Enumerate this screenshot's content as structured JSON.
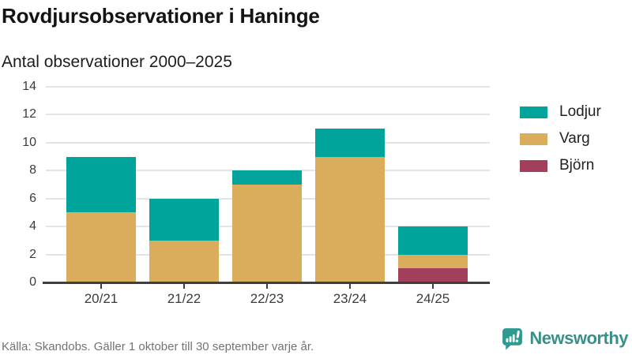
{
  "chart_data": {
    "type": "bar",
    "stacked": true,
    "title": "Rovdjursobservationer i Haninge",
    "subtitle": "Antal observationer 2000–2025",
    "categories": [
      "20/21",
      "21/22",
      "22/23",
      "23/24",
      "24/25"
    ],
    "series": [
      {
        "name": "Björn",
        "color": "#a23f5b",
        "values": [
          0,
          0,
          0,
          0,
          1
        ]
      },
      {
        "name": "Varg",
        "color": "#d9ad5c",
        "values": [
          5,
          3,
          7,
          9,
          1
        ]
      },
      {
        "name": "Lodjur",
        "color": "#00a49a",
        "values": [
          4,
          3,
          1,
          2,
          2
        ]
      }
    ],
    "totals": [
      9,
      6,
      8,
      11,
      4
    ],
    "legend": [
      {
        "label": "Lodjur",
        "color": "#00a49a"
      },
      {
        "label": "Varg",
        "color": "#d9ad5c"
      },
      {
        "label": "Björn",
        "color": "#a23f5b"
      }
    ],
    "xlabel": "",
    "ylabel": "",
    "ylim": [
      0,
      14
    ],
    "yticks": [
      0,
      2,
      4,
      6,
      8,
      10,
      12,
      14
    ],
    "grid": true,
    "legend_position": "right"
  },
  "footer": {
    "source": "Källa: Skandobs. Gäller 1 oktober till 30 september varje år.",
    "brand": "Newsworthy"
  },
  "colors": {
    "accent_teal": "#00a49a",
    "accent_gold": "#d9ad5c",
    "accent_maroon": "#a23f5b",
    "brand_teal": "#3a9089",
    "icon_teal": "#2f9a90"
  }
}
